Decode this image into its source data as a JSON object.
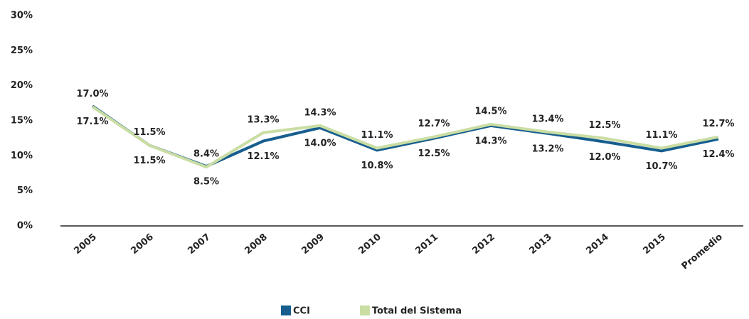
{
  "chart_data": {
    "type": "line",
    "categories": [
      "2005",
      "2006",
      "2007",
      "2008",
      "2009",
      "2010",
      "2011",
      "2012",
      "2013",
      "2014",
      "2015",
      "Promedio"
    ],
    "series": [
      {
        "name": "CCI",
        "color": "#175e8f",
        "values": [
          17.1,
          11.5,
          8.5,
          12.1,
          14.0,
          10.8,
          12.5,
          14.3,
          13.2,
          12.0,
          10.7,
          12.4
        ],
        "value_labels": [
          "17.1%",
          "11.5%",
          "8.5%",
          "12.1%",
          "14.0%",
          "10.8%",
          "12.5%",
          "14.3%",
          "13.2%",
          "12.0%",
          "10.7%",
          "12.4%"
        ]
      },
      {
        "name": "Total del Sistema",
        "color": "#cadda3",
        "values": [
          17.0,
          11.5,
          8.4,
          13.3,
          14.3,
          11.1,
          12.7,
          14.5,
          13.4,
          12.5,
          11.1,
          12.7
        ],
        "value_labels": [
          "17.0%",
          "11.5%",
          "8.4%",
          "13.3%",
          "14.3%",
          "11.1%",
          "12.7%",
          "14.5%",
          "13.4%",
          "12.5%",
          "11.1%",
          "12.7%"
        ]
      }
    ],
    "ylim": [
      0,
      30
    ],
    "yticks": [
      {
        "value": 0,
        "label": "0%"
      },
      {
        "value": 5,
        "label": "5%"
      },
      {
        "value": 10,
        "label": "10%"
      },
      {
        "value": 15,
        "label": "15%"
      },
      {
        "value": 20,
        "label": "20%"
      },
      {
        "value": 25,
        "label": "25%"
      },
      {
        "value": 30,
        "label": "30%"
      }
    ],
    "grid": false,
    "legend": "bottom"
  }
}
